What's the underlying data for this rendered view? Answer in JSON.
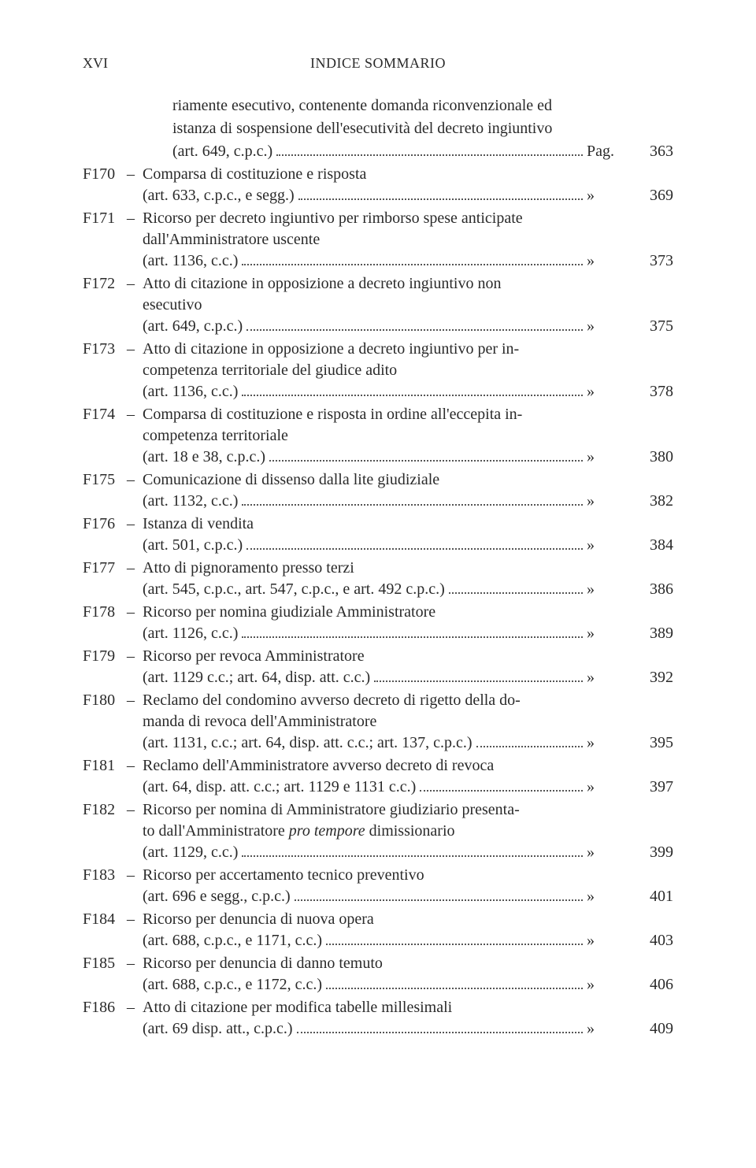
{
  "header": {
    "page_roman": "XVI",
    "title": "INDICE SOMMARIO"
  },
  "intro": {
    "line1": "riamente esecutivo, contenente domanda riconvenzionale ed",
    "line2": "istanza di sospensione dell'esecutività del decreto ingiuntivo",
    "article": "(art. 649, c.p.c.)",
    "prefix": "Pag.",
    "page": "363"
  },
  "entries": [
    {
      "code": "F170",
      "lines": [
        "Comparsa di costituzione e risposta"
      ],
      "article": "(art. 633, c.p.c., e segg.)",
      "page": "369"
    },
    {
      "code": "F171",
      "lines": [
        "Ricorso per decreto ingiuntivo per rimborso spese anticipate",
        "dall'Amministratore uscente"
      ],
      "article": "(art. 1136, c.c.)",
      "page": "373"
    },
    {
      "code": "F172",
      "lines": [
        "Atto di citazione in opposizione a decreto ingiuntivo non",
        "esecutivo"
      ],
      "article": "(art. 649, c.p.c.)",
      "page": "375"
    },
    {
      "code": "F173",
      "lines": [
        "Atto di citazione in opposizione a decreto ingiuntivo per in-",
        "competenza territoriale del giudice adito"
      ],
      "article": "(art. 1136, c.c.)",
      "page": "378"
    },
    {
      "code": "F174",
      "lines": [
        "Comparsa di costituzione e risposta in ordine all'eccepita in-",
        "competenza territoriale"
      ],
      "article": "(art. 18 e 38, c.p.c.)",
      "page": "380"
    },
    {
      "code": "F175",
      "lines": [
        "Comunicazione di dissenso dalla lite giudiziale"
      ],
      "article": "(art. 1132, c.c.)",
      "page": "382"
    },
    {
      "code": "F176",
      "lines": [
        "Istanza di vendita"
      ],
      "article": "(art. 501, c.p.c.)",
      "page": "384"
    },
    {
      "code": "F177",
      "lines": [
        "Atto di pignoramento presso terzi"
      ],
      "article": "(art. 545, c.p.c., art. 547, c.p.c., e art. 492 c.p.c.)",
      "page": "386"
    },
    {
      "code": "F178",
      "lines": [
        "Ricorso per nomina giudiziale Amministratore"
      ],
      "article": "(art. 1126, c.c.)",
      "page": "389"
    },
    {
      "code": "F179",
      "lines": [
        "Ricorso per revoca Amministratore"
      ],
      "article": "(art. 1129 c.c.; art. 64, disp. att. c.c.)",
      "page": "392"
    },
    {
      "code": "F180",
      "lines": [
        "Reclamo del condomino avverso decreto di rigetto della do-",
        "manda di revoca dell'Amministratore"
      ],
      "article": "(art. 1131, c.c.; art. 64, disp. att. c.c.; art. 137, c.p.c.)",
      "page": "395"
    },
    {
      "code": "F181",
      "lines": [
        "Reclamo dell'Amministratore avverso decreto di revoca"
      ],
      "article": "(art. 64, disp. att. c.c.; art. 1129 e 1131 c.c.)",
      "page": "397"
    },
    {
      "code": "F182",
      "lines_html": [
        "Ricorso per nomina di Amministratore giudiziario presenta-",
        "to dall'Amministratore <span class=\"italic\">pro tempore</span> dimissionario"
      ],
      "article": "(art. 1129, c.c.)",
      "page": "399"
    },
    {
      "code": "F183",
      "lines": [
        "Ricorso per accertamento tecnico preventivo"
      ],
      "article": "(art. 696 e segg., c.p.c.)",
      "page": "401"
    },
    {
      "code": "F184",
      "lines": [
        "Ricorso per denuncia di nuova opera"
      ],
      "article": "(art. 688, c.p.c., e 1171, c.c.)",
      "page": "403"
    },
    {
      "code": "F185",
      "lines": [
        "Ricorso per denuncia di danno temuto"
      ],
      "article": "(art. 688, c.p.c., e 1172, c.c.)",
      "page": "406"
    },
    {
      "code": "F186",
      "lines": [
        "Atto di citazione per modifica tabelle millesimali"
      ],
      "article": "(art. 69 disp. att., c.p.c.)",
      "page": "409"
    }
  ],
  "quote_mark": "»"
}
